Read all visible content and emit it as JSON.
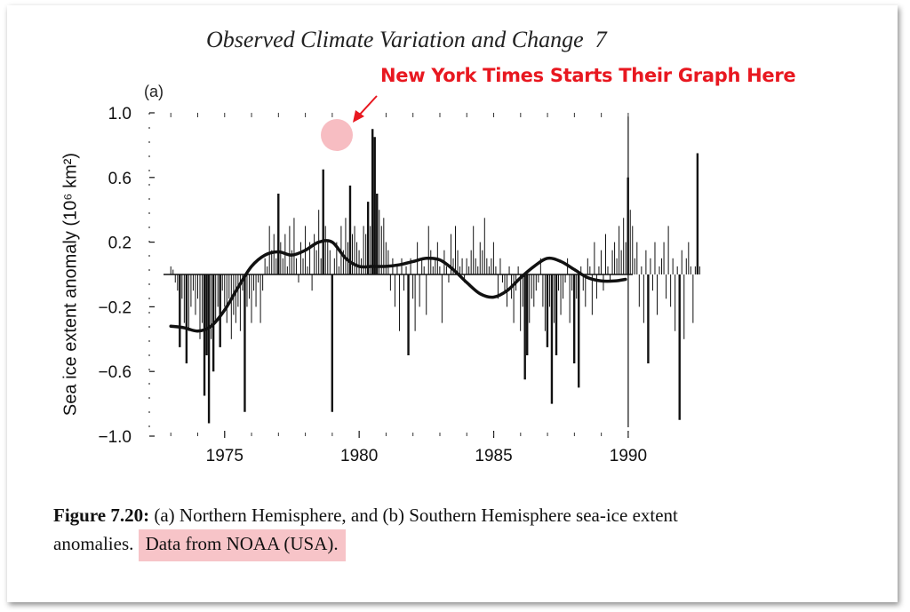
{
  "header": {
    "title": "Observed Climate Variation and Change",
    "page_number": "7"
  },
  "annotation": {
    "text": "New York Times Starts Their Graph Here",
    "color": "#e81820",
    "highlight_color": "#f4a7ad"
  },
  "caption": {
    "figure_label": "Figure 7.20:",
    "text_main": "(a)  Northern Hemisphere, and  (b) Southern Hemisphere sea-ice extent anomalies.",
    "text_source": "Data from NOAA (USA)."
  },
  "chart_data": {
    "type": "bar",
    "panel_label": "(a)",
    "title": "",
    "xlabel": "",
    "ylabel": "Sea ice extent anomaly (10⁶ km²)",
    "xlim": [
      1972.2,
      1990.3
    ],
    "ylim": [
      -1.0,
      1.0
    ],
    "x_ticks": [
      1975,
      1980,
      1985,
      1990
    ],
    "y_ticks": [
      1.0,
      0.6,
      0.2,
      -0.2,
      -0.6,
      -1.0
    ],
    "y_tick_labels": [
      "1.0",
      "0.6",
      "0.2",
      "−0.2",
      "−0.6",
      "−1.0"
    ],
    "grid": false,
    "monthly_anomalies": {
      "start": 1973.0,
      "step": 0.0833,
      "values": [
        0.05,
        0.03,
        -0.05,
        -0.1,
        -0.45,
        -0.15,
        -0.3,
        -0.55,
        -0.35,
        -0.2,
        -0.1,
        -0.25,
        -0.15,
        -0.4,
        -0.3,
        -0.75,
        -0.5,
        -0.92,
        -0.4,
        -0.6,
        -0.3,
        -0.2,
        -0.45,
        -0.1,
        -0.2,
        -0.3,
        -0.15,
        -0.4,
        -0.25,
        -0.3,
        -0.2,
        -0.35,
        -0.1,
        -0.85,
        -0.2,
        -0.15,
        -0.3,
        -0.1,
        -0.2,
        -0.05,
        -0.3,
        -0.1,
        0.1,
        0.05,
        0.3,
        0.15,
        0.25,
        0.1,
        0.5,
        0.2,
        0.1,
        0.25,
        0.05,
        0.3,
        0.15,
        0.35,
        0.1,
        -0.05,
        0.2,
        0.1,
        0.3,
        0.05,
        0.2,
        -0.1,
        0.25,
        0.15,
        0.4,
        0.1,
        0.65,
        0.3,
        0.2,
        0.15,
        -0.85,
        0.1,
        0.2,
        0.05,
        0.3,
        0.15,
        0.35,
        0.2,
        0.55,
        0.25,
        0.3,
        0.2,
        0.15,
        0.1,
        0.3,
        0.25,
        0.45,
        0.3,
        0.9,
        0.85,
        0.5,
        0.4,
        0.3,
        0.35,
        0.2,
        0.15,
        -0.1,
        0.1,
        -0.2,
        0.05,
        -0.35,
        0.1,
        -0.1,
        0.05,
        -0.5,
        0.1,
        -0.15,
        -0.35,
        0.2,
        -0.2,
        0.1,
        0.05,
        -0.25,
        0.3,
        0.15,
        0.05,
        0.1,
        0.2,
        0.05,
        -0.3,
        0.15,
        0.05,
        -0.05,
        0.25,
        0.1,
        0.3,
        0.15,
        0.05,
        0.1,
        -0.05,
        0.1,
        0.05,
        0.15,
        0.3,
        0.1,
        0.05,
        0.2,
        0.15,
        0.35,
        0.1,
        0.05,
        0.1,
        0.2,
        0.05,
        -0.15,
        0.1,
        -0.05,
        -0.1,
        -0.2,
        0.05,
        -0.15,
        -0.3,
        -0.1,
        0.05,
        -0.35,
        -0.2,
        -0.65,
        -0.5,
        -0.3,
        -0.15,
        -0.2,
        -0.1,
        -0.05,
        0.1,
        -0.2,
        -0.35,
        -0.45,
        -0.2,
        -0.8,
        -0.3,
        -0.5,
        -0.1,
        -0.25,
        -0.15,
        -0.05,
        0.1,
        -0.3,
        -0.1,
        -0.55,
        -0.15,
        -0.7,
        0.05,
        -0.1,
        -0.2,
        0.1,
        0.05,
        -0.25,
        0.2,
        -0.15,
        0.05,
        0.15,
        -0.1,
        0.25,
        0.05,
        -0.05,
        0.15,
        0.2,
        0.1,
        0.3,
        0.15,
        0.35,
        0.2,
        0.6,
        0.4,
        0.3,
        0.1,
        0.2,
        -0.2,
        0.05,
        -0.3,
        0.15,
        -0.55,
        0.1,
        -0.1,
        0.2,
        -0.25,
        0.05,
        0.1,
        0.2,
        -0.15,
        0.3,
        -0.2,
        0.1,
        -0.35,
        0.05,
        -0.9,
        0.15,
        -0.4,
        0.1,
        0.2,
        0.05,
        -0.3,
        0.05,
        0.75,
        0.05
      ]
    },
    "smoothed_curve": {
      "x": [
        1973.0,
        1973.5,
        1974.0,
        1974.5,
        1975.0,
        1975.5,
        1976.0,
        1976.5,
        1977.0,
        1977.5,
        1978.0,
        1978.5,
        1979.0,
        1979.5,
        1980.0,
        1980.5,
        1981.0,
        1981.5,
        1982.0,
        1982.5,
        1983.0,
        1983.5,
        1984.0,
        1984.5,
        1985.0,
        1985.5,
        1986.0,
        1986.5,
        1987.0,
        1987.5,
        1988.0,
        1988.5,
        1989.0,
        1989.5,
        1989.9
      ],
      "y": [
        -0.32,
        -0.33,
        -0.35,
        -0.32,
        -0.22,
        -0.08,
        0.05,
        0.12,
        0.14,
        0.12,
        0.15,
        0.2,
        0.2,
        0.1,
        0.05,
        0.05,
        0.05,
        0.06,
        0.08,
        0.1,
        0.09,
        0.03,
        -0.05,
        -0.12,
        -0.14,
        -0.1,
        -0.02,
        0.05,
        0.1,
        0.08,
        0.03,
        -0.02,
        -0.04,
        -0.04,
        -0.03
      ]
    }
  }
}
